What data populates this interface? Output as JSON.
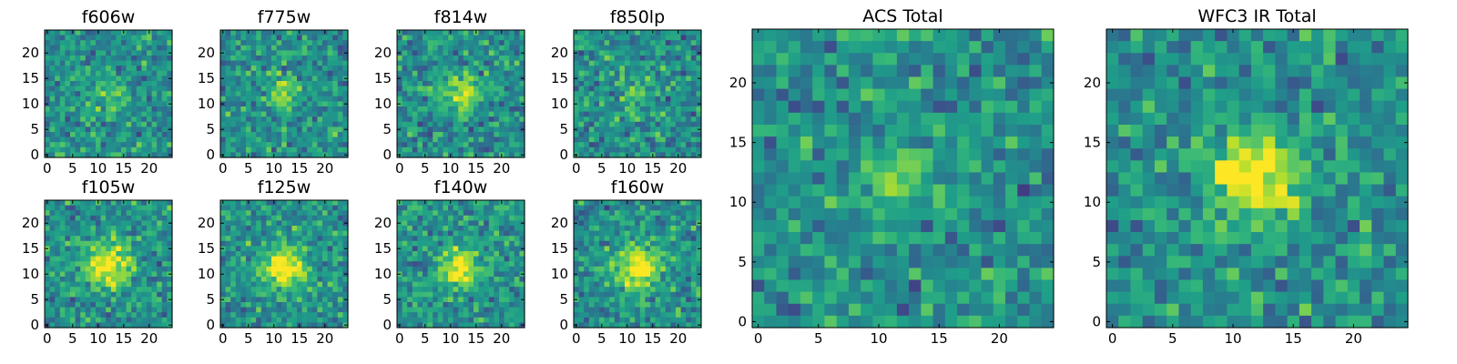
{
  "chart_data": [
    {
      "type": "heatmap",
      "title": "f606w",
      "xlabel": "",
      "ylabel": "",
      "xlim": [
        0,
        24
      ],
      "ylim": [
        0,
        24
      ],
      "xticks": [
        "0",
        "5",
        "10",
        "15",
        "20"
      ],
      "yticks": [
        "0",
        "5",
        "10",
        "15",
        "20"
      ],
      "colormap": "viridis",
      "source_center": [
        12,
        12
      ],
      "source_sigma": 2.3,
      "source_peak": 0.22
    },
    {
      "type": "heatmap",
      "title": "f775w",
      "xlabel": "",
      "ylabel": "",
      "xlim": [
        0,
        24
      ],
      "ylim": [
        0,
        24
      ],
      "xticks": [
        "0",
        "5",
        "10",
        "15",
        "20"
      ],
      "yticks": [
        "0",
        "5",
        "10",
        "15",
        "20"
      ],
      "colormap": "viridis",
      "source_center": [
        12,
        12
      ],
      "source_sigma": 2.3,
      "source_peak": 0.3
    },
    {
      "type": "heatmap",
      "title": "f814w",
      "xlabel": "",
      "ylabel": "",
      "xlim": [
        0,
        24
      ],
      "ylim": [
        0,
        24
      ],
      "xticks": [
        "0",
        "5",
        "10",
        "15",
        "20"
      ],
      "yticks": [
        "0",
        "5",
        "10",
        "15",
        "20"
      ],
      "colormap": "viridis",
      "source_center": [
        12,
        12
      ],
      "source_sigma": 2.4,
      "source_peak": 0.42
    },
    {
      "type": "heatmap",
      "title": "f850lp",
      "xlabel": "",
      "ylabel": "",
      "xlim": [
        0,
        24
      ],
      "ylim": [
        0,
        24
      ],
      "xticks": [
        "0",
        "5",
        "10",
        "15",
        "20"
      ],
      "yticks": [
        "0",
        "5",
        "10",
        "15",
        "20"
      ],
      "colormap": "viridis",
      "source_center": [
        12,
        12
      ],
      "source_sigma": 2.3,
      "source_peak": 0.2
    },
    {
      "type": "heatmap",
      "title": "f105w",
      "xlabel": "",
      "ylabel": "",
      "xlim": [
        0,
        24
      ],
      "ylim": [
        0,
        24
      ],
      "xticks": [
        "0",
        "5",
        "10",
        "15",
        "20"
      ],
      "yticks": [
        "0",
        "5",
        "10",
        "15",
        "20"
      ],
      "colormap": "viridis",
      "source_center": [
        12,
        12
      ],
      "source_sigma": 3.0,
      "source_peak": 0.55
    },
    {
      "type": "heatmap",
      "title": "f125w",
      "xlabel": "",
      "ylabel": "",
      "xlim": [
        0,
        24
      ],
      "ylim": [
        0,
        24
      ],
      "xticks": [
        "0",
        "5",
        "10",
        "15",
        "20"
      ],
      "yticks": [
        "0",
        "5",
        "10",
        "15",
        "20"
      ],
      "colormap": "viridis",
      "source_center": [
        12,
        11
      ],
      "source_sigma": 3.0,
      "source_peak": 0.55
    },
    {
      "type": "heatmap",
      "title": "f140w",
      "xlabel": "",
      "ylabel": "",
      "xlim": [
        0,
        24
      ],
      "ylim": [
        0,
        24
      ],
      "xticks": [
        "0",
        "5",
        "10",
        "15",
        "20"
      ],
      "yticks": [
        "0",
        "5",
        "10",
        "15",
        "20"
      ],
      "colormap": "viridis",
      "source_center": [
        12,
        11
      ],
      "source_sigma": 2.8,
      "source_peak": 0.55
    },
    {
      "type": "heatmap",
      "title": "f160w",
      "xlabel": "",
      "ylabel": "",
      "xlim": [
        0,
        24
      ],
      "ylim": [
        0,
        24
      ],
      "xticks": [
        "0",
        "5",
        "10",
        "15",
        "20"
      ],
      "yticks": [
        "0",
        "5",
        "10",
        "15",
        "20"
      ],
      "colormap": "viridis",
      "source_center": [
        12,
        11
      ],
      "source_sigma": 3.0,
      "source_peak": 0.6
    },
    {
      "type": "heatmap",
      "title": "ACS Total",
      "xlabel": "",
      "ylabel": "",
      "xlim": [
        0,
        24
      ],
      "ylim": [
        0,
        24
      ],
      "xticks": [
        "0",
        "5",
        "10",
        "15",
        "20"
      ],
      "yticks": [
        "0",
        "5",
        "10",
        "15",
        "20"
      ],
      "colormap": "viridis",
      "source_center": [
        12,
        12
      ],
      "source_sigma": 1.8,
      "source_peak": 0.35
    },
    {
      "type": "heatmap",
      "title": "WFC3 IR Total",
      "xlabel": "",
      "ylabel": "",
      "xlim": [
        0,
        24
      ],
      "ylim": [
        0,
        24
      ],
      "xticks": [
        "0",
        "5",
        "10",
        "15",
        "20"
      ],
      "yticks": [
        "0",
        "5",
        "10",
        "15",
        "20"
      ],
      "colormap": "viridis",
      "source_center": [
        12,
        12
      ],
      "source_sigma": 2.6,
      "source_peak": 0.6
    }
  ]
}
